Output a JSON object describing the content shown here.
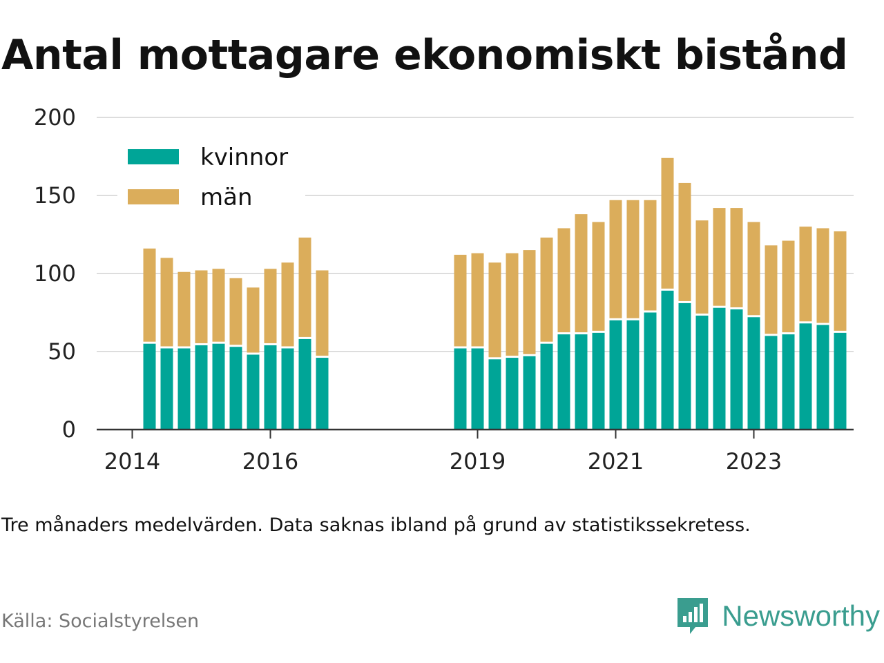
{
  "title": "Antal mottagare ekonomiskt bistånd",
  "note": "Tre månaders medelvärden. Data saknas ibland på grund av statistikssekretess.",
  "source": "Källa: Socialstyrelsen",
  "brand": {
    "name": "Newsworthy",
    "icon": "newsworthy-logo-icon",
    "color": "#3a9d8f"
  },
  "chart_data": {
    "type": "bar",
    "stacked": true,
    "title": "",
    "xlabel": "",
    "ylabel": "",
    "ylim": [
      0,
      200
    ],
    "y_ticks": [
      0,
      50,
      100,
      150,
      200
    ],
    "x_ticks": [
      "2014",
      "2016",
      "2019",
      "2021",
      "2023"
    ],
    "grid": true,
    "legend_position": "top-left",
    "colors": {
      "kvinnor": "#00a597",
      "män": "#dbad5b"
    },
    "groups": [
      {
        "start_quarter": "2014-Q2",
        "kvinnor": [
          55,
          52,
          52,
          54,
          55,
          53,
          48,
          54,
          52,
          58,
          46
        ],
        "män": [
          61,
          58,
          49,
          48,
          48,
          44,
          43,
          49,
          55,
          65,
          56
        ]
      },
      {
        "start_quarter": "2018-Q4",
        "kvinnor": [
          52,
          52,
          45,
          46,
          47,
          55,
          61,
          61,
          62,
          70,
          70,
          75,
          89,
          81,
          73,
          78,
          77,
          72,
          60,
          61,
          68,
          67,
          62
        ],
        "män": [
          60,
          61,
          62,
          67,
          68,
          68,
          68,
          77,
          71,
          77,
          77,
          72,
          85,
          77,
          61,
          64,
          65,
          61,
          58,
          60,
          62,
          62,
          65
        ]
      }
    ],
    "series": [
      {
        "name": "kvinnor"
      },
      {
        "name": "män"
      }
    ]
  }
}
